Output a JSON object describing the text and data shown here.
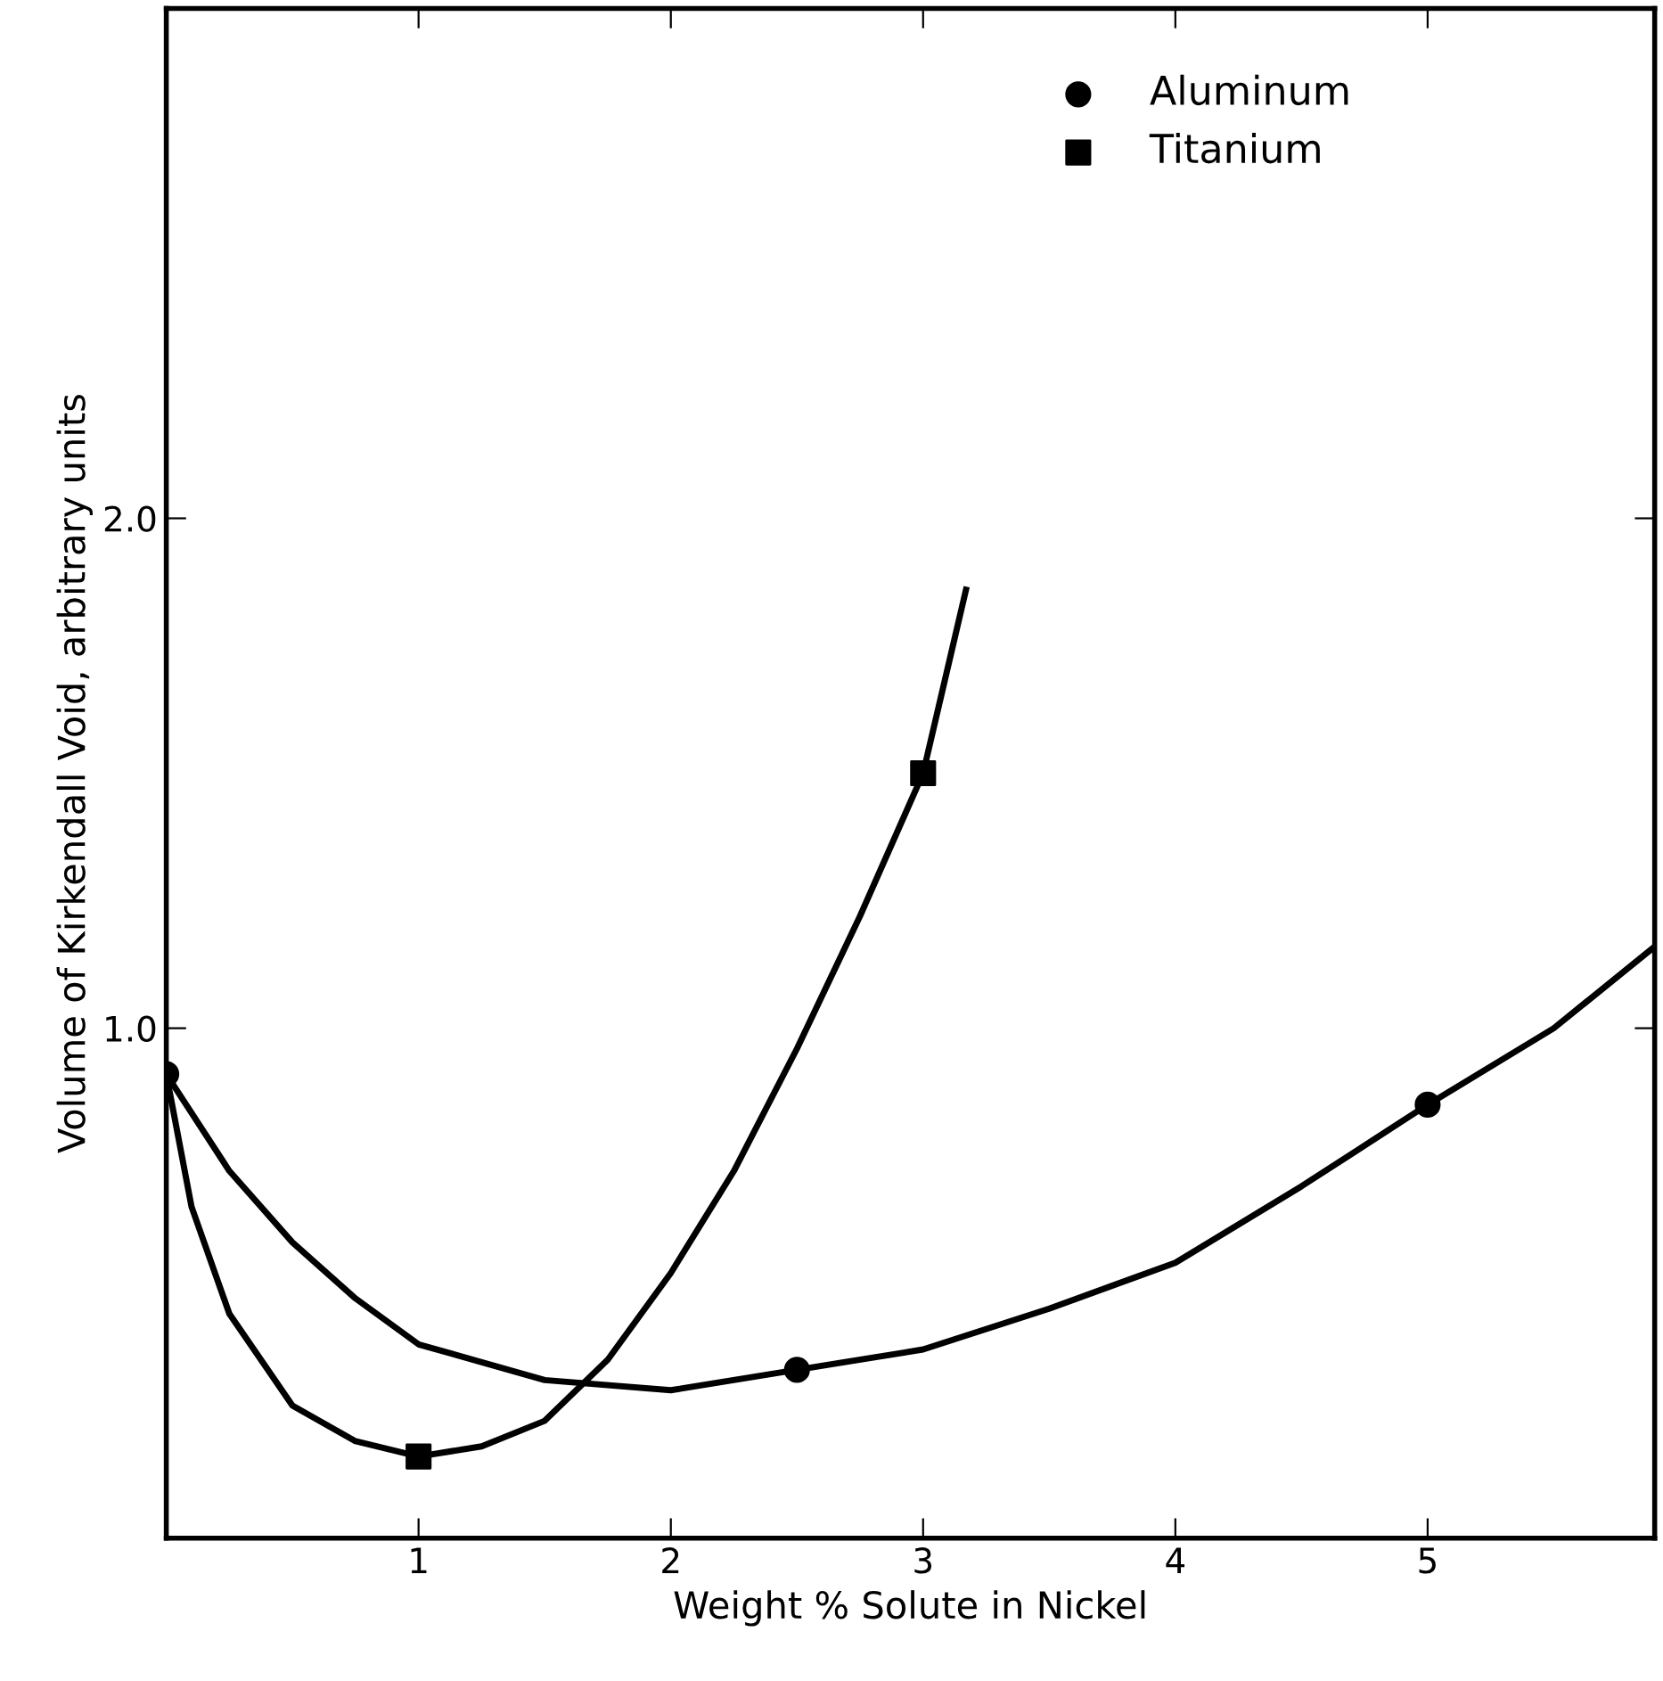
{
  "chart_data": {
    "type": "scatter",
    "xlabel": "Weight % Solute in Nickel",
    "ylabel": "Volume of Kirkendall Void, arbitrary units",
    "xlim": [
      0,
      5.9
    ],
    "ylim": [
      0,
      3.0
    ],
    "xticks": [
      1,
      2,
      3,
      4,
      5
    ],
    "yticks": [
      {
        "value": 1.0,
        "label": "1.0"
      },
      {
        "value": 2.0,
        "label": "2.0"
      }
    ],
    "grid": false,
    "legend": "top right",
    "series": [
      {
        "name": "Aluminum",
        "marker": "circle",
        "color": "#000000",
        "x": [
          0,
          2.5,
          5
        ],
        "values": [
          0.91,
          0.33,
          0.85
        ]
      },
      {
        "name": "Titanium",
        "marker": "square",
        "color": "#000000",
        "x": [
          1,
          3
        ],
        "values": [
          0.16,
          1.5
        ]
      },
      {
        "type": "line",
        "marker": "none",
        "line_style": "solid",
        "color": "#000000",
        "x": [
          0,
          0.25,
          0.5,
          0.75,
          1,
          1.5,
          2,
          2.5,
          3,
          3.5,
          4,
          4.5,
          5,
          5.5,
          5.9
        ],
        "values": [
          0.91,
          0.72,
          0.58,
          0.47,
          0.38,
          0.31,
          0.29,
          0.33,
          0.37,
          0.45,
          0.54,
          0.69,
          0.85,
          1.0,
          1.16
        ]
      },
      {
        "type": "line",
        "marker": "none",
        "line_style": "solid",
        "color": "#000000",
        "x": [
          0,
          0.1,
          0.25,
          0.5,
          0.75,
          1,
          1.25,
          1.5,
          1.75,
          2,
          2.25,
          2.5,
          2.75,
          3,
          3.17
        ],
        "values": [
          0.91,
          0.65,
          0.44,
          0.26,
          0.19,
          0.16,
          0.18,
          0.23,
          0.35,
          0.52,
          0.72,
          0.96,
          1.22,
          1.5,
          1.86
        ]
      }
    ]
  }
}
